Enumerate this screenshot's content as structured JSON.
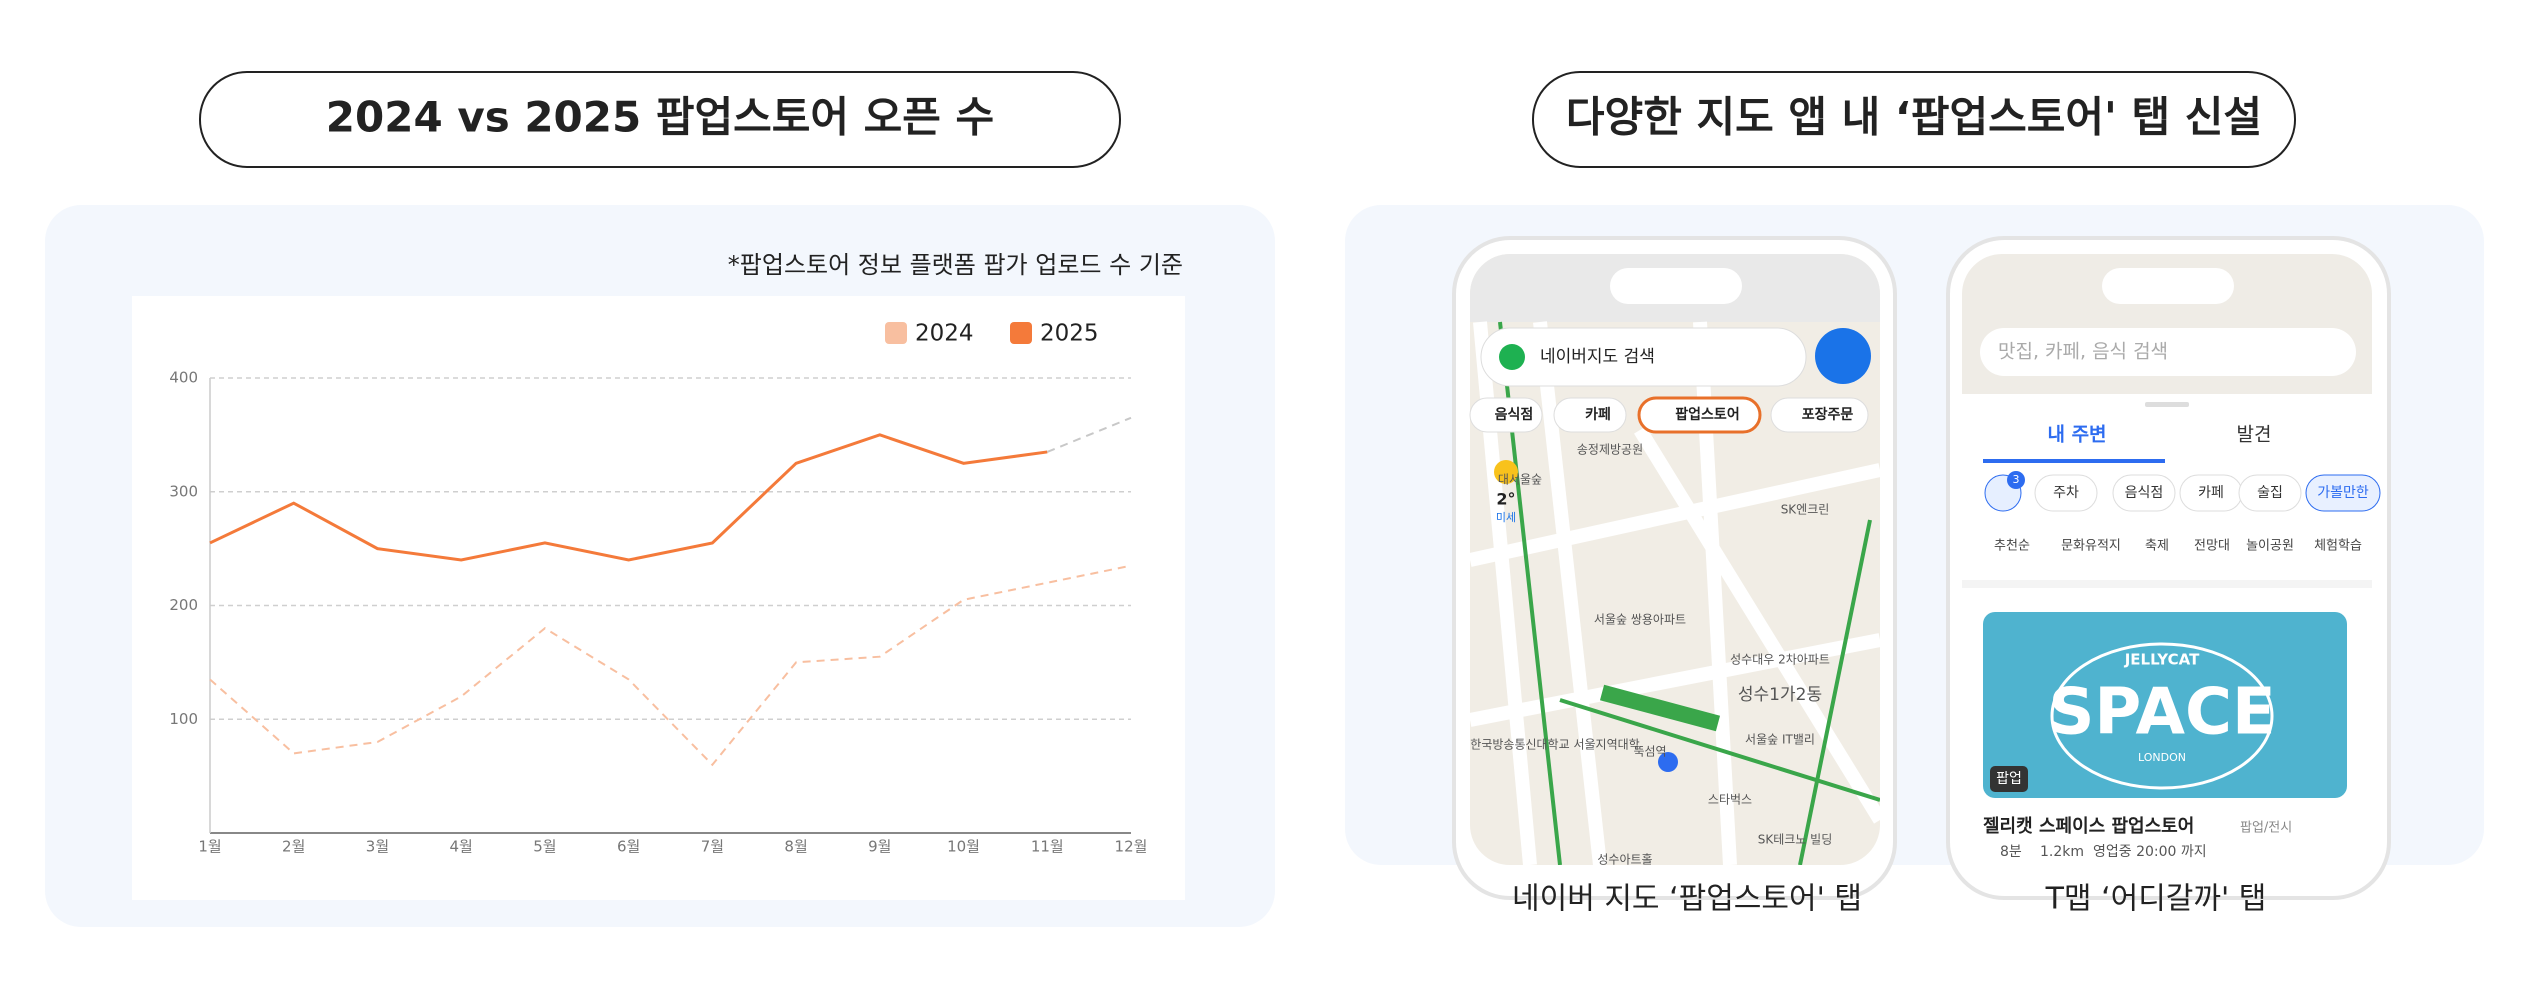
{
  "headings": {
    "left": "2024 vs 2025 팝업스토어 오픈 수",
    "right": "다양한 지도 앱 내 ‘팝업스토어' 탭 신설"
  },
  "chart_data": {
    "type": "line",
    "note": "*팝업스토어 정보 플랫폼 팝가 업로드 수 기준",
    "categories": [
      "1월",
      "2월",
      "3월",
      "4월",
      "5월",
      "6월",
      "7월",
      "8월",
      "9월",
      "10월",
      "11월",
      "12월"
    ],
    "series": [
      {
        "name": "2024",
        "color": "#f8bfa0",
        "dashed": true,
        "values": [
          135,
          70,
          80,
          120,
          180,
          135,
          60,
          150,
          155,
          205,
          220,
          235
        ]
      },
      {
        "name": "2025",
        "color": "#f47a3a",
        "dashed": false,
        "dashed_after": 10,
        "dashed_color": "#c8c8c8",
        "values": [
          255,
          290,
          250,
          240,
          255,
          240,
          255,
          325,
          350,
          325,
          335,
          365
        ]
      }
    ],
    "ylim": [
      0,
      400
    ],
    "yticks": [
      100,
      200,
      300,
      400
    ],
    "grid": true,
    "legend": "top-right"
  },
  "naver": {
    "caption": "네이버 지도 ‘팝업스토어' 탭",
    "search": "네이버지도 검색",
    "chips": [
      "음식점",
      "카페",
      "팝업스토어",
      "포장주문"
    ],
    "weather": "2°",
    "dust": "미세",
    "map_labels": [
      "송정제방공원",
      "대서울숲",
      "SK엔크린",
      "서울숲 쌍용아파트",
      "성수대우 2차아파트",
      "성수1가2동",
      "서울숲 IT밸리",
      "한국방송통신대학교 서울지역대학",
      "뚝섬역",
      "스타벅스",
      "SK테크노 빌딩",
      "성수아트홀"
    ]
  },
  "tmap": {
    "caption": "T맵 ‘어디갈까' 탭",
    "search": "맛집, 카페, 음식 검색",
    "tabs": [
      "내 주변",
      "발견"
    ],
    "badge": "3",
    "chips": [
      "주차",
      "음식점",
      "카페",
      "술집",
      "가볼만한"
    ],
    "sorts": [
      "추천순",
      "문화유적지",
      "축제",
      "전망대",
      "놀이공원",
      "체험학습"
    ],
    "card": {
      "brand": "JELLYCAT",
      "logo": "SPACE",
      "city": "LONDON",
      "tag": "팝업",
      "title": "젤리캣 스페이스 팝업스토어",
      "category": "팝업/전시",
      "time": "8분",
      "distance": "1.2km",
      "hours": "영업중 20:00 까지"
    }
  }
}
